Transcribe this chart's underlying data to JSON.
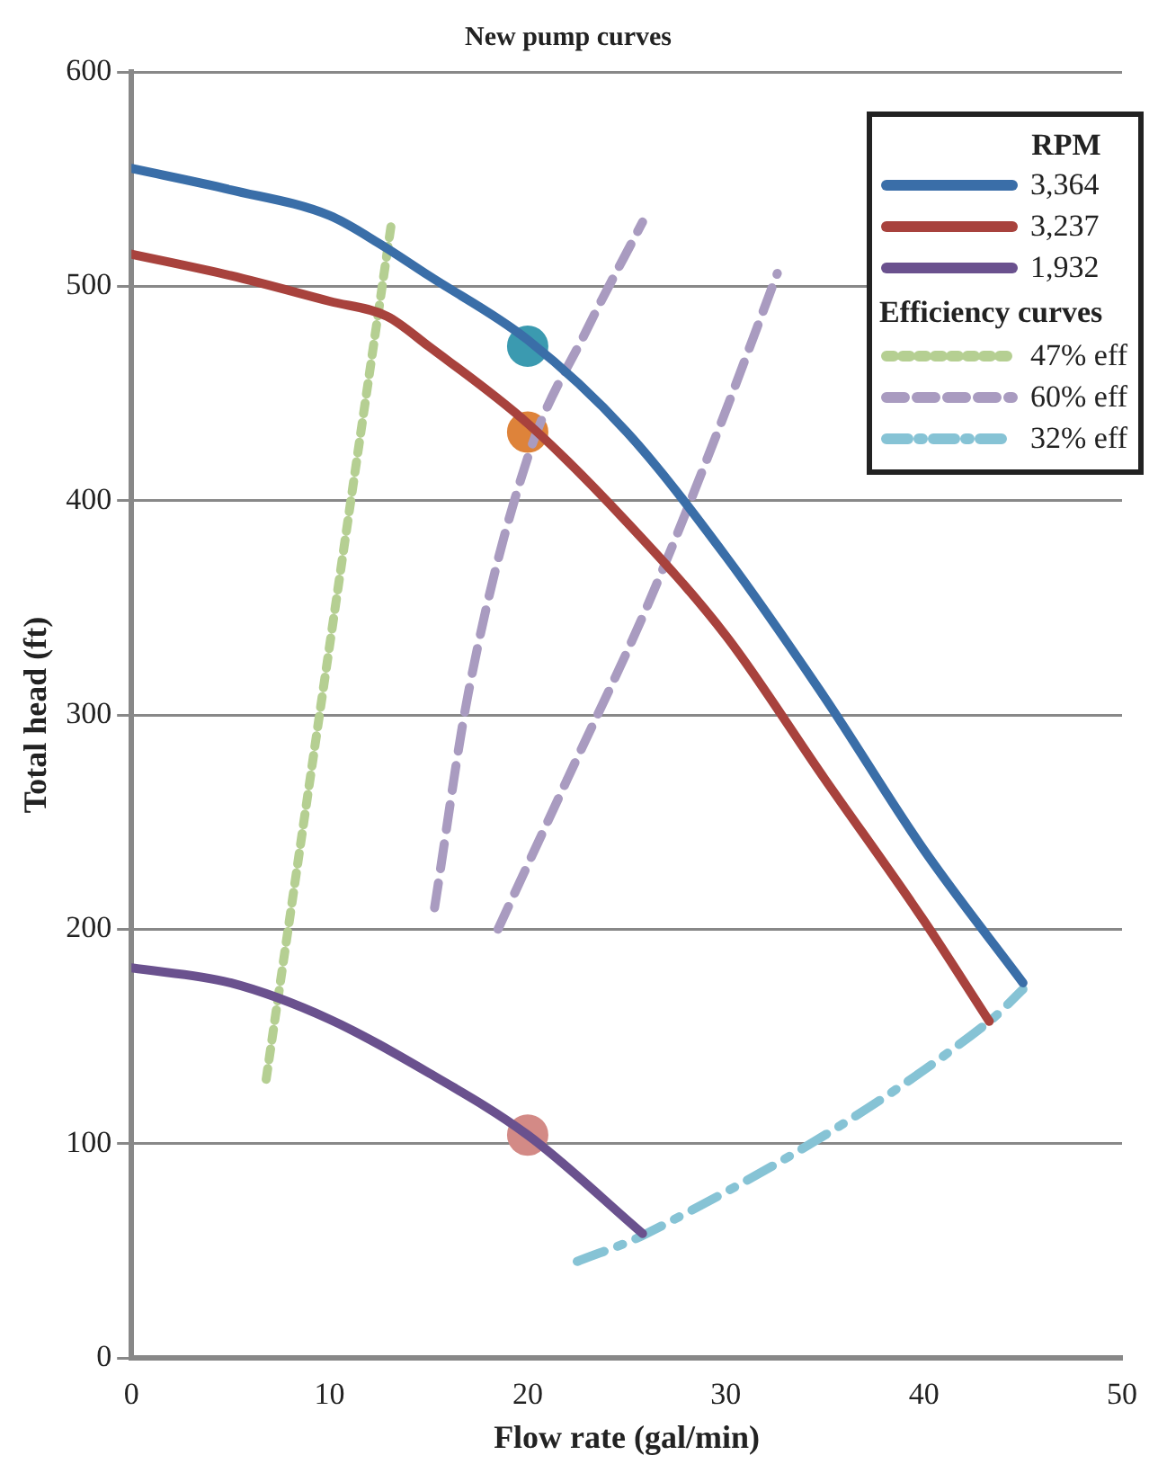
{
  "chart_data": {
    "type": "line",
    "title": "New pump curves",
    "xlabel": "Flow rate (gal/min)",
    "ylabel": "Total head (ft)",
    "legend_title": "RPM",
    "annotations": [
      "Efficiency curves"
    ],
    "xlim": [
      0,
      50
    ],
    "xticks": [
      0,
      10,
      20,
      30,
      40,
      50
    ],
    "ylim": [
      0,
      600
    ],
    "yticks": [
      0,
      100,
      200,
      300,
      400,
      500,
      600
    ],
    "grid": "y",
    "legend": "top right",
    "series": [
      {
        "name": "3,364",
        "color": "#3a6ea8",
        "line_style": "solid",
        "x": [
          0,
          5,
          10,
          12.5,
          15,
          20,
          25,
          30,
          35,
          40,
          45
        ],
        "values": [
          555,
          545,
          533,
          520,
          505,
          475,
          432,
          374,
          308,
          237,
          175
        ]
      },
      {
        "name": "3,237",
        "color": "#a8423d",
        "line_style": "solid",
        "x": [
          0,
          5,
          10,
          12.9,
          15,
          20,
          25,
          30,
          35,
          40,
          43.3
        ],
        "values": [
          515,
          505,
          493,
          486,
          472,
          436,
          390,
          337,
          270,
          204,
          157
        ]
      },
      {
        "name": "1,932",
        "color": "#6a518e",
        "line_style": "solid",
        "x": [
          0,
          5,
          10,
          15,
          20,
          25.8
        ],
        "values": [
          182,
          175,
          158,
          133,
          104,
          58
        ]
      },
      {
        "name": "47% eff",
        "color": "#b5cf92",
        "line_style": "dotted",
        "x": [
          6.8,
          13.1
        ],
        "values": [
          130,
          528
        ]
      },
      {
        "name": "60% eff",
        "color": "#a99bc0",
        "line_style": "dashed",
        "x": [
          15.3,
          17,
          20,
          23,
          25.8
        ],
        "values": [
          210,
          310,
          420,
          480,
          530
        ]
      },
      {
        "color": "#a99bc0",
        "line_style": "dashed",
        "x": [
          18.5,
          22,
          26,
          29.5,
          32.6
        ],
        "values": [
          200,
          270,
          350,
          430,
          506
        ]
      },
      {
        "name": "32% eff",
        "color": "#86c3d5",
        "line_style": "dashdot",
        "x": [
          22.5,
          26,
          43.3,
          45
        ],
        "values": [
          45,
          58,
          157,
          172
        ]
      },
      {
        "type": "scatter",
        "color": "#3b9ab0",
        "x": [
          20
        ],
        "values": [
          472
        ]
      },
      {
        "type": "scatter",
        "color": "#de833a",
        "x": [
          20
        ],
        "values": [
          432
        ]
      },
      {
        "type": "scatter",
        "color": "#d38a86",
        "x": [
          20
        ],
        "values": [
          104
        ]
      }
    ]
  }
}
